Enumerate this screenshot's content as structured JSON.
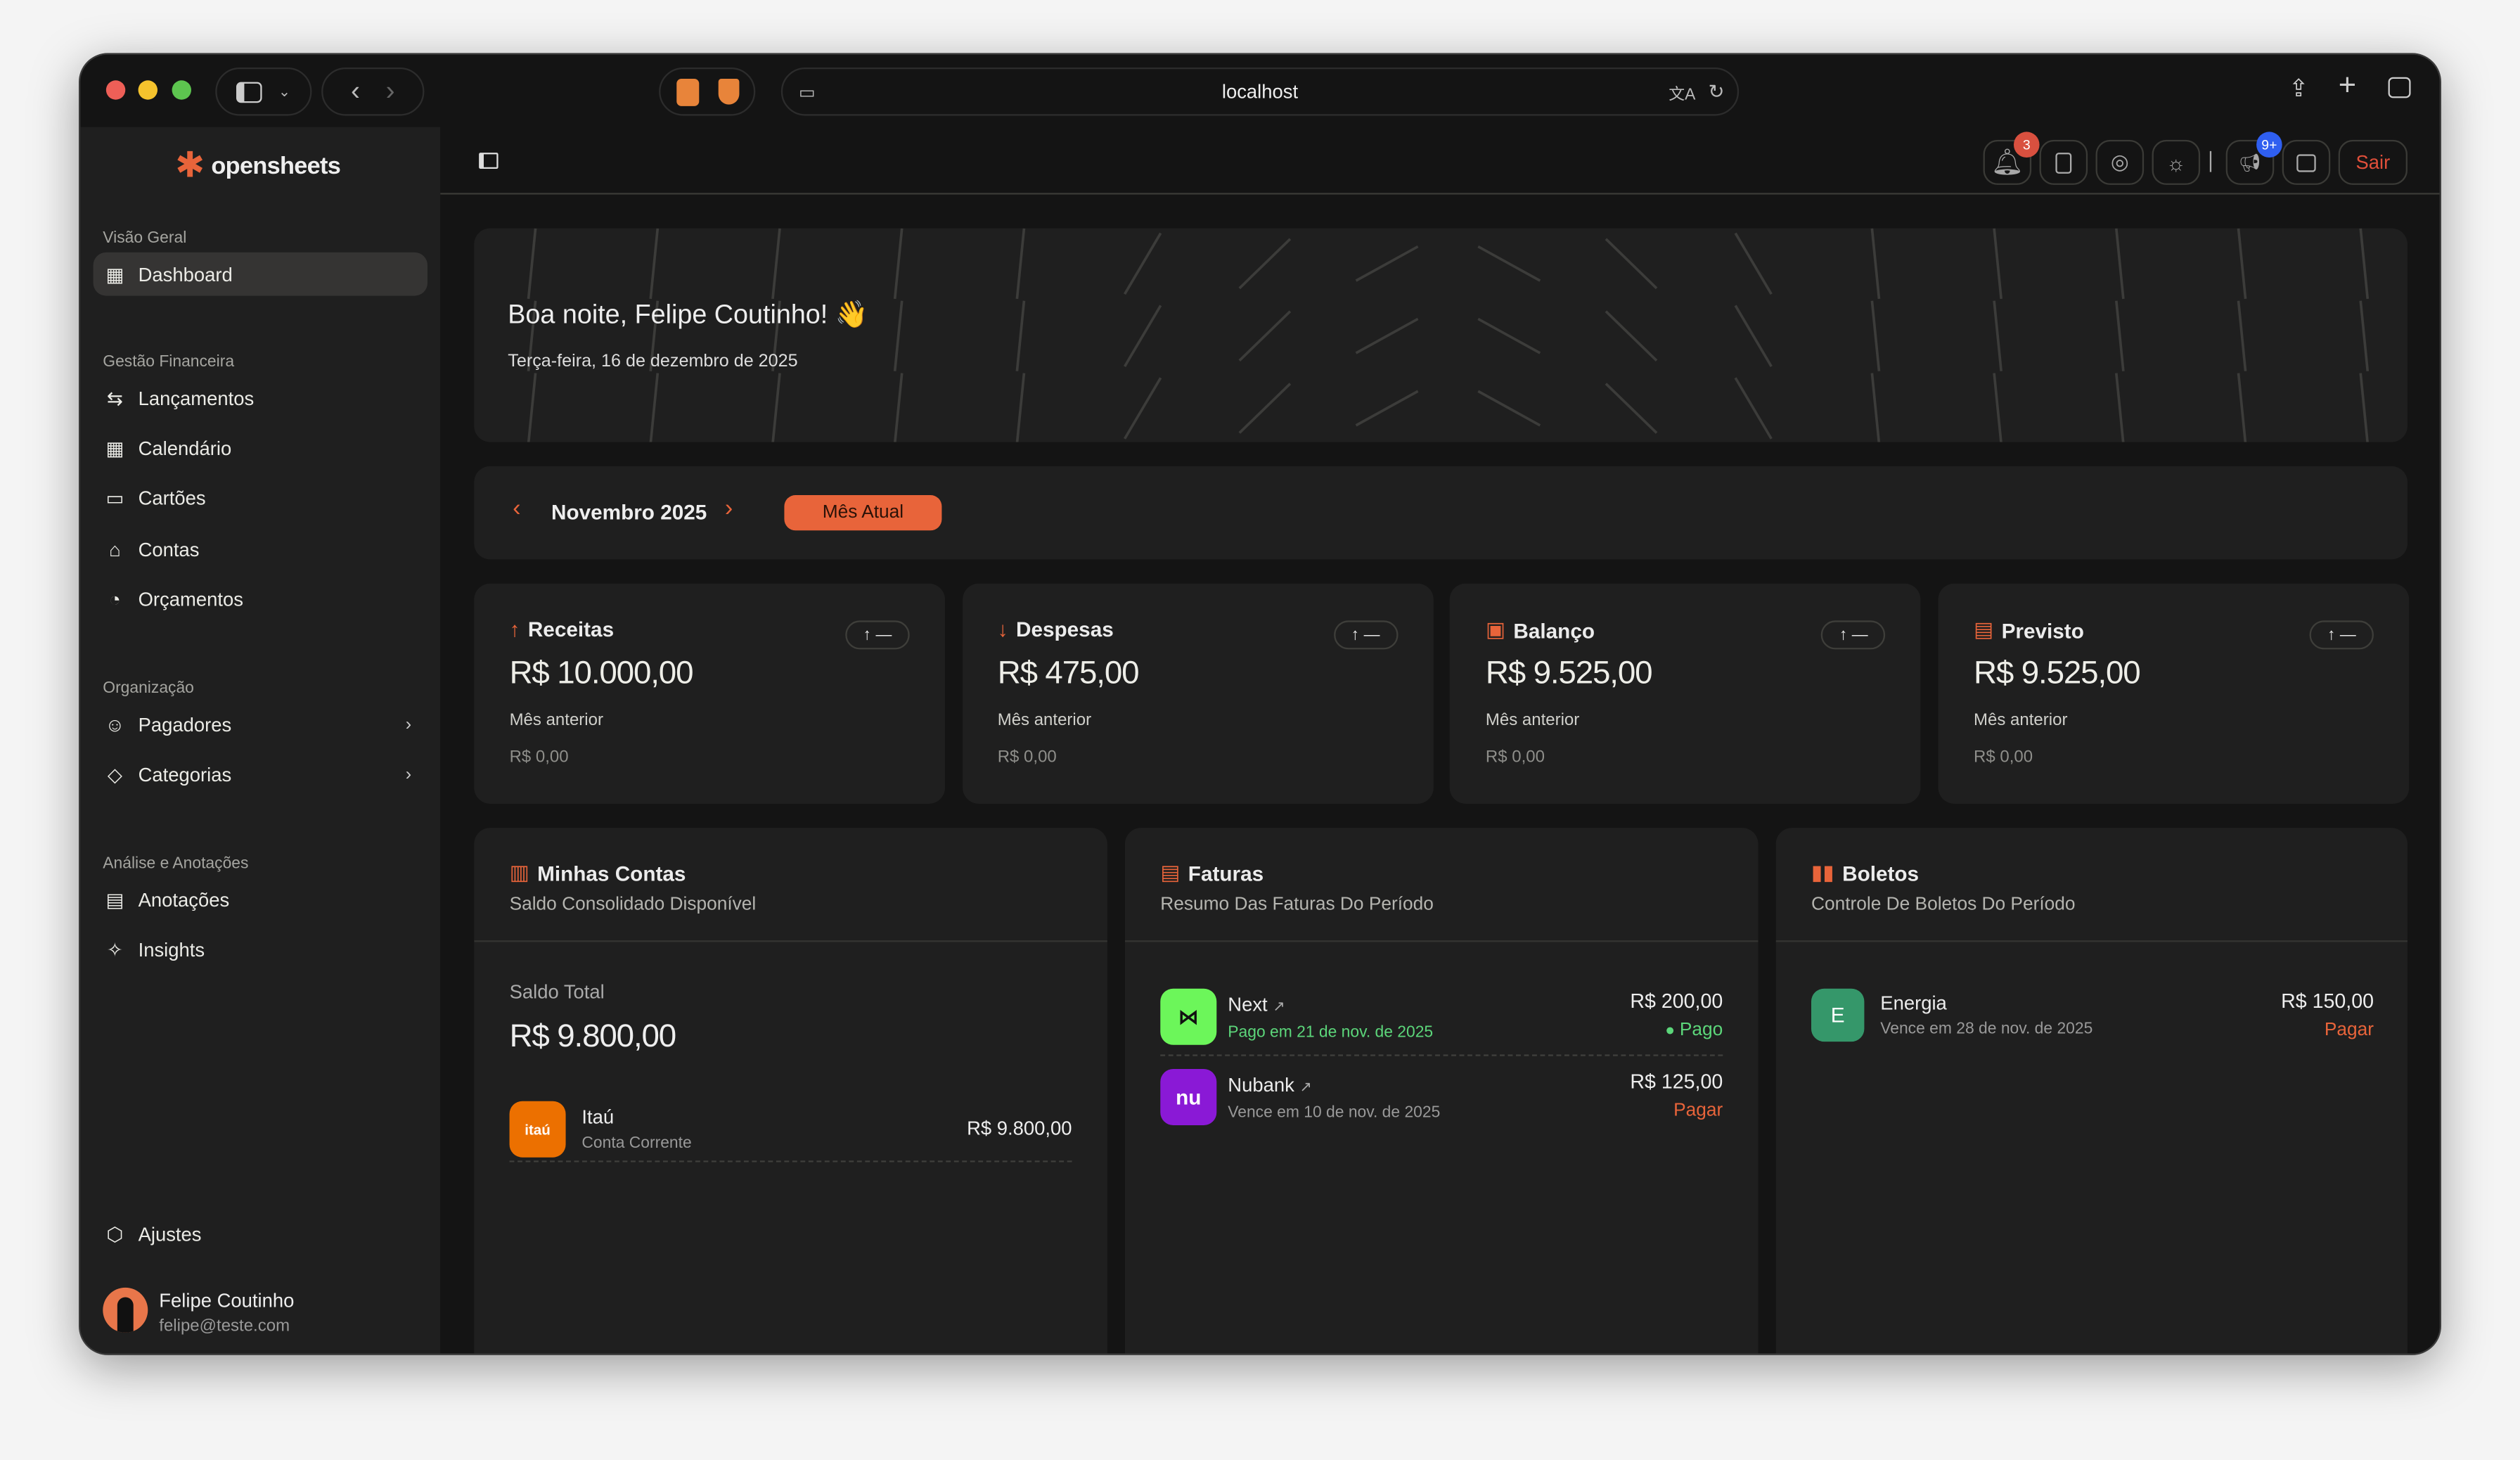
{
  "browser": {
    "url": "localhost"
  },
  "colors": {
    "accent": "#e8643a",
    "paid": "#5cd67a",
    "notif_badge": "#d9503f",
    "news_badge": "#2f5ff0"
  },
  "app": {
    "name": "opensheets"
  },
  "sidebar": {
    "sections": [
      {
        "title": "Visão Geral",
        "items": [
          {
            "label": "Dashboard",
            "icon": "dashboard-icon",
            "active": true
          }
        ]
      },
      {
        "title": "Gestão Financeira",
        "items": [
          {
            "label": "Lançamentos",
            "icon": "arrows-icon"
          },
          {
            "label": "Calendário",
            "icon": "calendar-icon"
          },
          {
            "label": "Cartões",
            "icon": "card-icon"
          },
          {
            "label": "Contas",
            "icon": "bank-icon"
          },
          {
            "label": "Orçamentos",
            "icon": "gauge-icon"
          }
        ]
      },
      {
        "title": "Organização",
        "items": [
          {
            "label": "Pagadores",
            "icon": "users-icon"
          },
          {
            "label": "Categorias",
            "icon": "tag-icon"
          }
        ]
      },
      {
        "title": "Análise e Anotações",
        "items": [
          {
            "label": "Anotações",
            "icon": "notes-icon"
          },
          {
            "label": "Insights",
            "icon": "sparkles-icon"
          }
        ]
      }
    ],
    "settings": "Ajustes",
    "user": {
      "name": "Felipe Coutinho",
      "email": "felipe@teste.com"
    }
  },
  "header": {
    "notifications_count": "3",
    "news_count": "9+",
    "logout": "Sair"
  },
  "greeting": {
    "title": "Boa noite, Felipe Coutinho! 👋",
    "date": "Terça-feira, 16 de dezembro de 2025"
  },
  "period": {
    "month": "Novembro 2025",
    "current_button": "Mês Atual"
  },
  "stats": [
    {
      "title": "Receitas",
      "value": "R$ 10.000,00",
      "prev_label": "Mês anterior",
      "prev_value": "R$ 0,00",
      "trend": "↑ —"
    },
    {
      "title": "Despesas",
      "value": "R$ 475,00",
      "prev_label": "Mês anterior",
      "prev_value": "R$ 0,00",
      "trend": "↑ —"
    },
    {
      "title": "Balanço",
      "value": "R$ 9.525,00",
      "prev_label": "Mês anterior",
      "prev_value": "R$ 0,00",
      "trend": "↑ —"
    },
    {
      "title": "Previsto",
      "value": "R$ 9.525,00",
      "prev_label": "Mês anterior",
      "prev_value": "R$ 0,00",
      "trend": "↑ —"
    }
  ],
  "accounts": {
    "title": "Minhas Contas",
    "subtitle": "Saldo Consolidado Disponível",
    "total_label": "Saldo Total",
    "total": "R$ 9.800,00",
    "items": [
      {
        "name": "Itaú",
        "type": "Conta Corrente",
        "balance": "R$ 9.800,00",
        "logo": "itaú"
      }
    ]
  },
  "invoices": {
    "title": "Faturas",
    "subtitle": "Resumo Das Faturas Do Período",
    "items": [
      {
        "name": "Next",
        "detail": "Pago em 21 de nov. de 2025",
        "amount": "R$ 200,00",
        "status": "Pago"
      },
      {
        "name": "Nubank",
        "detail": "Vence em 10 de nov. de 2025",
        "amount": "R$ 125,00",
        "status": "Pagar",
        "logo": "nu"
      }
    ]
  },
  "bills": {
    "title": "Boletos",
    "subtitle": "Controle De Boletos Do Período",
    "items": [
      {
        "initial": "E",
        "name": "Energia",
        "detail": "Vence em 28 de nov. de 2025",
        "amount": "R$ 150,00",
        "status": "Pagar"
      }
    ]
  }
}
